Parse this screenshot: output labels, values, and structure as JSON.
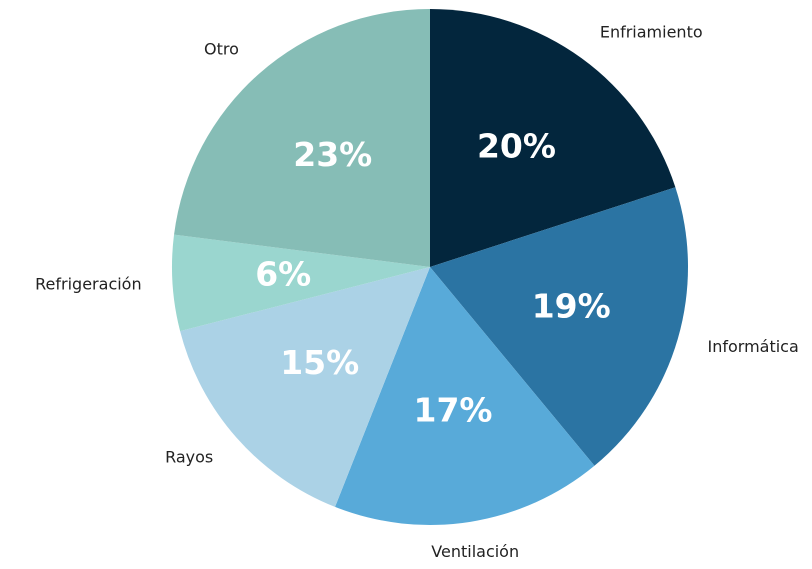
{
  "chart_data": {
    "type": "pie",
    "categories": [
      "Enfriamiento",
      "Informática",
      "Ventilación",
      "Rayos",
      "Refrigeración",
      "Otro"
    ],
    "values": [
      20,
      19,
      17,
      15,
      6,
      23
    ],
    "value_labels": [
      "20%",
      "19%",
      "17%",
      "15%",
      "6%",
      "23%"
    ],
    "colors": [
      "#03263d",
      "#2b74a3",
      "#58aad9",
      "#abd2e6",
      "#9ad6cf",
      "#86bdb6"
    ]
  }
}
